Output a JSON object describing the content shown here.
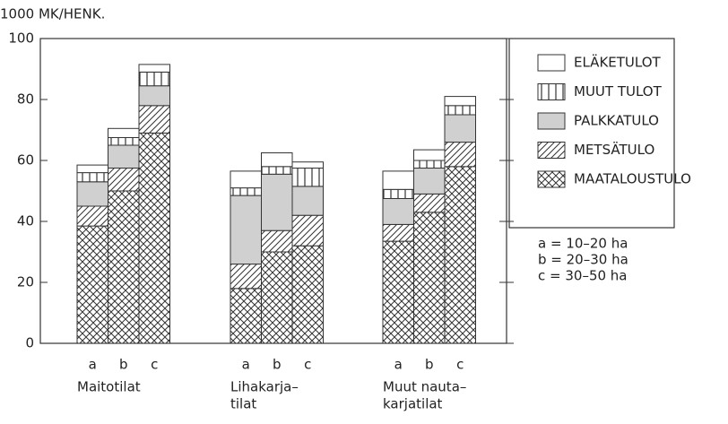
{
  "chart_data": {
    "type": "stacked_bar",
    "y_axis_label": "1000 MK/HENK.",
    "categories": [
      "a",
      "b",
      "c",
      "a",
      "b",
      "c",
      "a",
      "b",
      "c"
    ],
    "groups": [
      [
        "Maitotilat"
      ],
      [
        "Lihakarja–",
        "tilat"
      ],
      [
        "Muut nauta–",
        "karjatilat"
      ]
    ],
    "series": [
      {
        "name": "MAATALOUSTULO",
        "pattern": "crosshatch",
        "values": [
          38.5,
          50,
          69,
          18,
          30,
          32,
          33.5,
          43,
          58
        ]
      },
      {
        "name": "METSÄTULO",
        "pattern": "hatch",
        "values": [
          6.5,
          7.5,
          9,
          8,
          7,
          10,
          5.5,
          6,
          8
        ]
      },
      {
        "name": "PALKKATULO",
        "pattern": "gray",
        "values": [
          8,
          7.5,
          6.5,
          22.5,
          18.5,
          9.5,
          8.5,
          8.5,
          9
        ]
      },
      {
        "name": "MUUT TULOT",
        "pattern": "vertical",
        "values": [
          3,
          2.5,
          4.5,
          2.5,
          2.5,
          6,
          3,
          2.5,
          3
        ]
      },
      {
        "name": "ELÄKETULOT",
        "pattern": "none",
        "values": [
          2.5,
          3,
          2.5,
          5.5,
          4.5,
          2,
          6,
          3.5,
          3
        ]
      }
    ],
    "ylim": [
      0,
      100
    ],
    "yticks": [
      0,
      20,
      40,
      60,
      80,
      100
    ],
    "notes": [
      "a = 10–20 ha",
      "b = 20–30 ha",
      "c = 30–50 ha"
    ]
  }
}
